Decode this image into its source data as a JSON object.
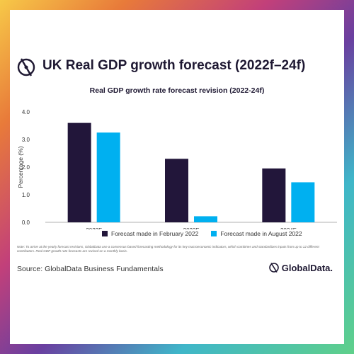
{
  "header": {
    "title": "UK Real GDP growth forecast (2022f–24f)"
  },
  "chart_data": {
    "type": "bar",
    "title": "Real GDP growth rate forecast revision (2022-24f)",
    "xlabel": "",
    "ylabel": "Percentage (%)",
    "ylim": [
      0,
      4
    ],
    "yticks": [
      "0.0",
      "1.0",
      "2.0",
      "3.0",
      "4.0"
    ],
    "grid": false,
    "legend_position": "bottom",
    "categories": [
      "2022F",
      "2023F",
      "2024F"
    ],
    "series": [
      {
        "name": "Forecast made in February 2022",
        "color": "#22163a",
        "values": [
          3.6,
          2.3,
          1.95
        ]
      },
      {
        "name": "Forecast made in August 2022",
        "color": "#00b0f0",
        "values": [
          3.25,
          0.22,
          1.45
        ]
      }
    ]
  },
  "footer": {
    "note": "Note: To arrive at the yearly forecast revisions, GlobalData use a consensus-based forecasting methodology for its key macroeconomic indicators, which combines and standardizes inputs from up to 12 different contributors. Real GDP growth rate forecasts are revised on a monthly basis.",
    "source": "Source: GlobalData Business Fundamentals",
    "brand": "GlobalData."
  },
  "colors": {
    "text_dark": "#1e1832"
  }
}
